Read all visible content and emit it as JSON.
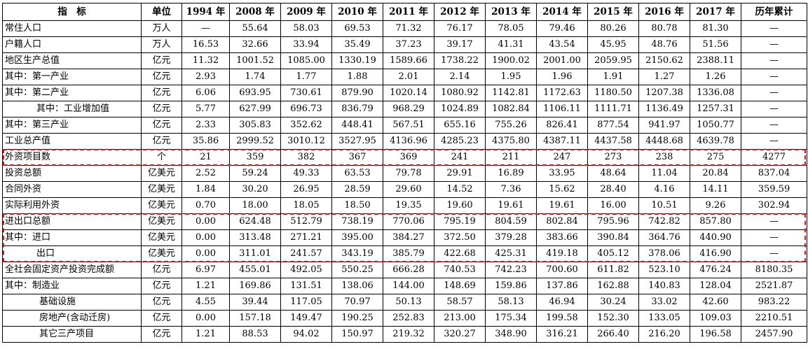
{
  "columns": [
    "指　标",
    "单位",
    "1994 年",
    "2008 年",
    "2009 年",
    "2010 年",
    "2011 年",
    "2012 年",
    "2013 年",
    "2014 年",
    "2015 年",
    "2016 年",
    "2017 年",
    "历年累计"
  ],
  "rows": [
    {
      "name": "常住人口",
      "indent": 0,
      "unit": "万人",
      "values": [
        "—",
        "55.64",
        "58.03",
        "69.53",
        "71.32",
        "76.17",
        "78.05",
        "79.46",
        "80.26",
        "80.78",
        "81.30",
        "—"
      ]
    },
    {
      "name": "户籍人口",
      "indent": 0,
      "unit": "万人",
      "values": [
        "16.53",
        "32.66",
        "33.94",
        "35.49",
        "37.23",
        "39.17",
        "41.31",
        "43.54",
        "45.95",
        "48.76",
        "51.56",
        "—"
      ]
    },
    {
      "name": "地区生产总值",
      "indent": 0,
      "unit": "亿元",
      "values": [
        "11.32",
        "1001.52",
        "1085.00",
        "1330.19",
        "1589.66",
        "1738.22",
        "1900.02",
        "2001.00",
        "2059.95",
        "2150.62",
        "2388.11",
        "—"
      ]
    },
    {
      "name": "其中：第一产业",
      "indent": 0,
      "unit": "亿元",
      "values": [
        "2.93",
        "1.74",
        "1.77",
        "1.88",
        "2.01",
        "2.14",
        "1.95",
        "1.96",
        "1.91",
        "1.27",
        "1.26",
        "—"
      ]
    },
    {
      "name": "其中：第二产业",
      "indent": 0,
      "unit": "亿元",
      "values": [
        "6.06",
        "693.95",
        "730.61",
        "879.90",
        "1020.14",
        "1080.92",
        "1142.81",
        "1172.63",
        "1180.50",
        "1207.38",
        "1336.08",
        "—"
      ]
    },
    {
      "name": "其中：工业增加值",
      "indent": 1,
      "unit": "亿元",
      "values": [
        "5.77",
        "627.99",
        "696.73",
        "836.79",
        "968.29",
        "1024.89",
        "1082.84",
        "1106.11",
        "1111.71",
        "1136.49",
        "1257.31",
        "—"
      ]
    },
    {
      "name": "其中：第三产业",
      "indent": 0,
      "unit": "亿元",
      "values": [
        "2.33",
        "305.83",
        "352.62",
        "448.41",
        "567.51",
        "655.16",
        "755.26",
        "826.41",
        "877.54",
        "941.97",
        "1050.77",
        "—"
      ]
    },
    {
      "name": "工业总产值",
      "indent": 0,
      "unit": "亿元",
      "values": [
        "35.86",
        "2999.52",
        "3010.12",
        "3527.95",
        "4136.96",
        "4285.23",
        "4375.80",
        "4387.11",
        "4437.58",
        "4448.68",
        "4639.78",
        "—"
      ]
    },
    {
      "name": "外资项目数",
      "indent": 0,
      "unit": "个",
      "values": [
        "21",
        "359",
        "382",
        "367",
        "369",
        "241",
        "211",
        "247",
        "273",
        "238",
        "275",
        "4277"
      ]
    },
    {
      "name": "投资总额",
      "indent": 0,
      "unit": "亿美元",
      "values": [
        "2.52",
        "59.24",
        "49.33",
        "63.53",
        "79.78",
        "29.91",
        "16.89",
        "33.95",
        "48.64",
        "11.04",
        "20.84",
        "837.04"
      ]
    },
    {
      "name": "合同外资",
      "indent": 0,
      "unit": "亿美元",
      "values": [
        "1.84",
        "30.20",
        "26.95",
        "28.59",
        "29.60",
        "14.52",
        "7.36",
        "15.62",
        "28.40",
        "4.16",
        "14.11",
        "359.59"
      ]
    },
    {
      "name": "实际利用外资",
      "indent": 0,
      "unit": "亿美元",
      "values": [
        "0.70",
        "18.00",
        "18.05",
        "18.50",
        "19.35",
        "19.60",
        "19.61",
        "19.61",
        "16.00",
        "10.51",
        "9.26",
        "302.94"
      ]
    },
    {
      "name": "进出口总额",
      "indent": 0,
      "unit": "亿美元",
      "values": [
        "0.00",
        "624.48",
        "512.79",
        "738.19",
        "770.06",
        "795.19",
        "804.59",
        "802.84",
        "795.96",
        "742.82",
        "857.80",
        "—"
      ]
    },
    {
      "name": "其中：进口",
      "indent": 0,
      "unit": "亿美元",
      "values": [
        "0.00",
        "313.48",
        "271.21",
        "395.00",
        "384.27",
        "372.50",
        "379.28",
        "383.66",
        "390.84",
        "364.76",
        "440.90",
        "—"
      ]
    },
    {
      "name": "出口",
      "indent": 1,
      "unit": "亿美元",
      "values": [
        "0.00",
        "311.01",
        "241.57",
        "343.19",
        "385.79",
        "422.68",
        "425.31",
        "419.18",
        "405.12",
        "378.06",
        "416.90",
        "—"
      ]
    },
    {
      "name": "全社会固定资产投资完成额",
      "indent": 0,
      "unit": "亿元",
      "values": [
        "6.97",
        "455.01",
        "492.05",
        "550.25",
        "666.28",
        "740.53",
        "742.23",
        "700.60",
        "611.82",
        "523.10",
        "476.24",
        "8180.35"
      ]
    },
    {
      "name": "其中：制造业",
      "indent": 0,
      "unit": "亿元",
      "values": [
        "1.21",
        "169.86",
        "131.51",
        "138.06",
        "144.00",
        "148.69",
        "159.86",
        "137.86",
        "162.88",
        "140.83",
        "128.04",
        "2521.87"
      ]
    },
    {
      "name": "基础设施",
      "indent": 2,
      "unit": "亿元",
      "values": [
        "4.55",
        "39.44",
        "117.05",
        "70.97",
        "50.13",
        "58.57",
        "58.13",
        "46.94",
        "30.24",
        "33.02",
        "42.60",
        "983.22"
      ]
    },
    {
      "name": "房地产(含动迁房)",
      "indent": 2,
      "unit": "亿元",
      "values": [
        "0.00",
        "157.18",
        "149.47",
        "190.25",
        "252.83",
        "213.00",
        "175.34",
        "199.58",
        "152.30",
        "133.05",
        "109.03",
        "2210.51"
      ]
    },
    {
      "name": "其它三产项目",
      "indent": 2,
      "unit": "亿元",
      "values": [
        "1.21",
        "88.53",
        "94.02",
        "150.97",
        "219.32",
        "320.27",
        "348.90",
        "316.21",
        "266.40",
        "216.20",
        "196.58",
        "2457.90"
      ]
    }
  ],
  "highlight_color": "#d4141b",
  "highlight_groups": [
    {
      "rows": [
        "外资项目数"
      ]
    },
    {
      "rows": [
        "进出口总额",
        "其中：进口",
        "出口"
      ]
    }
  ]
}
